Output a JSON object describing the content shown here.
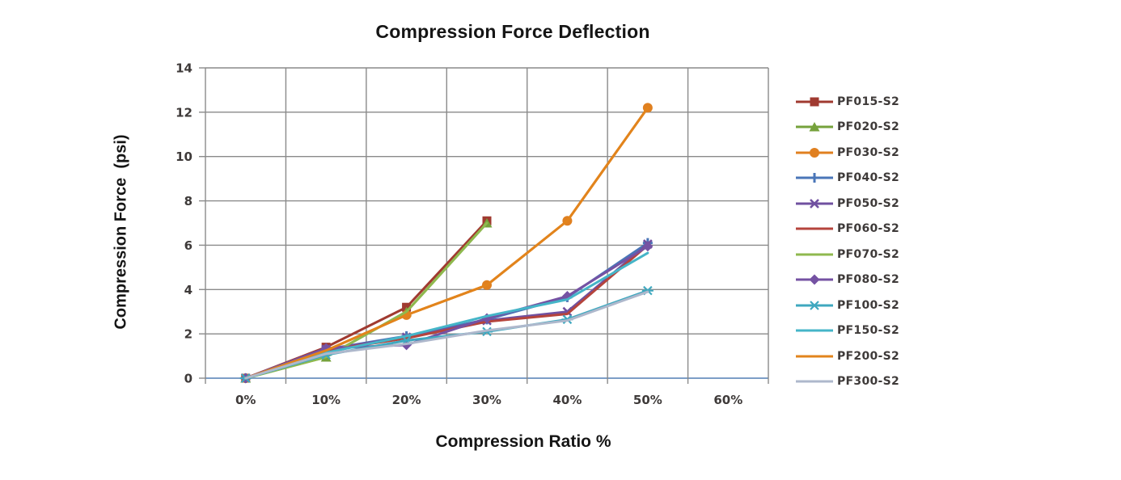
{
  "chart_data": {
    "type": "line",
    "title": "Compression Force Deflection",
    "xlabel": "Compression Ratio %",
    "ylabel": "Compression Force  (psi)",
    "categories": [
      "0%",
      "10%",
      "20%",
      "30%",
      "40%",
      "50%",
      "60%"
    ],
    "ylim": [
      0,
      14
    ],
    "yticks": [
      0,
      2,
      4,
      6,
      8,
      10,
      12,
      14
    ],
    "grid": true,
    "legend_position": "right",
    "axis_colors": {
      "grid": "#8a8a8a",
      "zero_line": "#7d9ec7",
      "tick_label": "#3e3a39"
    },
    "series": [
      {
        "name": "PF015-S2",
        "color": "#a03a30",
        "marker": "square",
        "values": [
          0,
          1.4,
          3.2,
          7.1
        ]
      },
      {
        "name": "PF020-S2",
        "color": "#76a23c",
        "marker": "triangle",
        "values": [
          0,
          0.95,
          3.0,
          7.0
        ]
      },
      {
        "name": "PF030-S2",
        "color": "#e08020",
        "marker": "circle",
        "values": [
          0,
          1.25,
          2.85,
          4.2,
          7.1,
          12.2
        ]
      },
      {
        "name": "PF040-S2",
        "color": "#4a76b8",
        "marker": "plus",
        "values": [
          0,
          1.3,
          1.9,
          2.65,
          3.65,
          6.1
        ]
      },
      {
        "name": "PF050-S2",
        "color": "#7050a0",
        "marker": "x",
        "values": [
          0,
          1.3,
          1.85,
          2.6,
          3.0,
          6.05
        ]
      },
      {
        "name": "PF060-S2",
        "color": "#b5443c",
        "marker": "none",
        "values": [
          0,
          1.25,
          1.8,
          2.55,
          2.9,
          6.0
        ]
      },
      {
        "name": "PF070-S2",
        "color": "#8fb94e",
        "marker": "none",
        "values": [
          0,
          0.95,
          3.0,
          7.0
        ]
      },
      {
        "name": "PF080-S2",
        "color": "#7552a3",
        "marker": "diamond",
        "values": [
          0,
          1.35,
          1.5,
          2.7,
          3.7,
          5.95
        ]
      },
      {
        "name": "PF100-S2",
        "color": "#3fa8bf",
        "marker": "star",
        "values": [
          0,
          1.05,
          1.7,
          2.1,
          2.65,
          3.95
        ]
      },
      {
        "name": "PF150-S2",
        "color": "#45b5c8",
        "marker": "none",
        "values": [
          0,
          1.15,
          1.9,
          2.8,
          3.55,
          5.65
        ]
      },
      {
        "name": "PF200-S2",
        "color": "#e2841c",
        "marker": "none",
        "values": [
          0,
          1.25,
          2.85,
          4.2,
          7.1,
          12.2
        ]
      },
      {
        "name": "PF300-S2",
        "color": "#aeb8cc",
        "marker": "none",
        "values": [
          0,
          1.1,
          1.55,
          2.15,
          2.6,
          3.9
        ]
      }
    ]
  }
}
